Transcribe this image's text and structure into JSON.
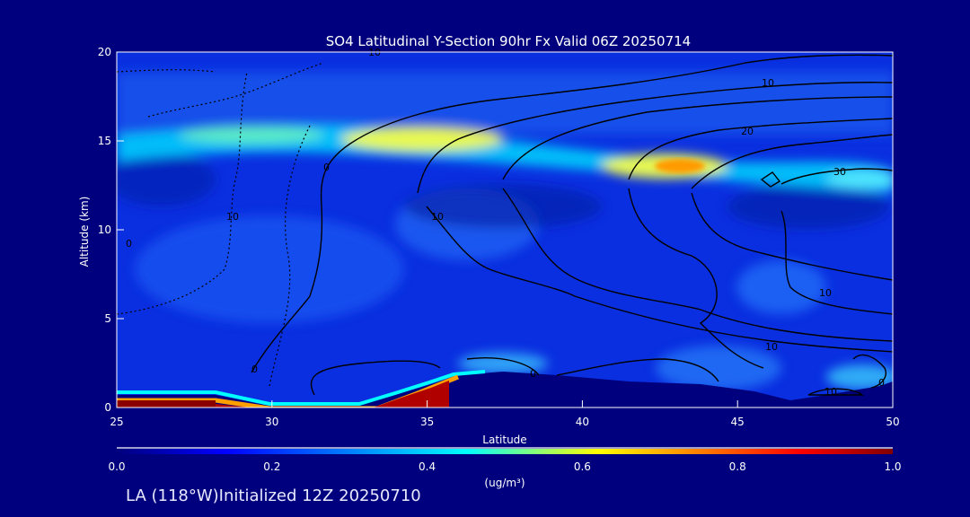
{
  "chart_data": {
    "type": "heatmap",
    "title": "SO4 Latitudinal Y-Section 90hr  Fx Valid 06Z 20250714",
    "xlabel": "Latitude",
    "ylabel": "Altitude (km)",
    "xlim": [
      25,
      50
    ],
    "ylim": [
      0,
      20
    ],
    "x_ticks": [
      "25",
      "30",
      "35",
      "40",
      "45",
      "50"
    ],
    "y_ticks": [
      "0",
      "5",
      "10",
      "15",
      "20"
    ],
    "colorbar": {
      "min": 0.0,
      "max": 1.0,
      "ticks": [
        "0.0",
        "0.2",
        "0.4",
        "0.6",
        "0.8",
        "1.0"
      ],
      "unit_label": "(ug/m³)",
      "colors": [
        "#00007e",
        "#0000ff",
        "#0080ff",
        "#00ffff",
        "#ffff00",
        "#ff8000",
        "#ff0000",
        "#800000"
      ]
    },
    "concentration_features": [
      {
        "name": "surface layer",
        "lat": [
          25,
          37
        ],
        "alt": [
          0,
          1
        ],
        "value": 1.0
      },
      {
        "name": "upper plume west",
        "lat": [
          33,
          39
        ],
        "alt": [
          14,
          16
        ],
        "value": 0.55
      },
      {
        "name": "upper plume east",
        "lat": [
          41,
          45
        ],
        "alt": [
          12.5,
          14.5
        ],
        "value": 0.65
      },
      {
        "name": "mid background",
        "lat": [
          25,
          50
        ],
        "alt": [
          2,
          13
        ],
        "value": 0.2
      }
    ],
    "contour_labels": [
      "0",
      "10",
      "10",
      "10",
      "20",
      "30",
      "10",
      "0",
      "0",
      "10",
      "0",
      "10",
      "10",
      "0"
    ]
  },
  "footer": {
    "init_text": "LA (118°W)Initialized 12Z 20250710"
  }
}
